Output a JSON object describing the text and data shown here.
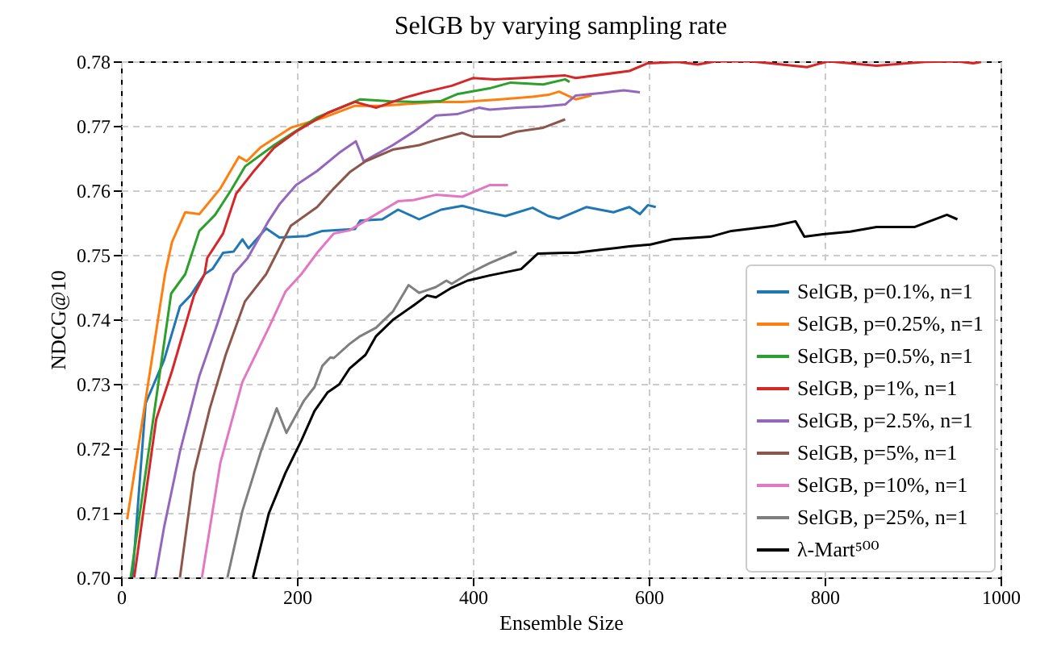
{
  "chart_data": {
    "type": "line",
    "title": "SelGB by varying sampling rate",
    "xlabel": "Ensemble Size",
    "ylabel": "NDCG@10",
    "xlim": [
      0,
      1000
    ],
    "ylim": [
      0.7,
      0.78
    ],
    "xticks": [
      0,
      200,
      400,
      600,
      800,
      1000
    ],
    "yticks": [
      {
        "value": 0.7,
        "label": "0.70"
      },
      {
        "value": 0.71,
        "label": "0.71"
      },
      {
        "value": 0.72,
        "label": "0.72"
      },
      {
        "value": 0.73,
        "label": "0.73"
      },
      {
        "value": 0.74,
        "label": "0.74"
      },
      {
        "value": 0.75,
        "label": "0.75"
      },
      {
        "value": 0.76,
        "label": "0.76"
      },
      {
        "value": 0.77,
        "label": "0.77"
      },
      {
        "value": 0.78,
        "label": "0.78"
      }
    ],
    "grid": true,
    "legend": "bottom right",
    "series": [
      {
        "name": "SelGB, p=0.1%, n=1",
        "color": "#1f77b4",
        "x": [
          13,
          28,
          49,
          67,
          79,
          95,
          104,
          116,
          128,
          138,
          145,
          165,
          180,
          211,
          229,
          266,
          272,
          297,
          315,
          339,
          364,
          388,
          413,
          437,
          468,
          486,
          498,
          529,
          560,
          578,
          590,
          599,
          608
        ],
        "values": [
          0.7,
          0.727,
          0.7337,
          0.742,
          0.7437,
          0.747,
          0.7478,
          0.7503,
          0.7505,
          0.7524,
          0.751,
          0.7541,
          0.7527,
          0.7529,
          0.7537,
          0.754,
          0.7553,
          0.7555,
          0.757,
          0.7555,
          0.757,
          0.7576,
          0.7567,
          0.756,
          0.7573,
          0.756,
          0.7556,
          0.7574,
          0.7566,
          0.7574,
          0.7563,
          0.7577,
          0.7574
        ]
      },
      {
        "name": "SelGB, p=0.25%, n=1",
        "color": "#ff7f0e",
        "x": [
          7,
          50,
          58,
          73,
          89,
          113,
          134,
          143,
          159,
          193,
          229,
          266,
          297,
          358,
          388,
          431,
          468,
          486,
          498,
          517,
          535
        ],
        "values": [
          0.709,
          0.747,
          0.752,
          0.7566,
          0.7563,
          0.7603,
          0.7652,
          0.7645,
          0.7667,
          0.7697,
          0.7712,
          0.7731,
          0.7731,
          0.7737,
          0.7737,
          0.7741,
          0.7745,
          0.7748,
          0.7753,
          0.7741,
          0.7747
        ]
      },
      {
        "name": "SelGB, p=0.5%, n=1",
        "color": "#2ca02c",
        "x": [
          11,
          57,
          73,
          89,
          107,
          125,
          141,
          174,
          193,
          223,
          272,
          305,
          333,
          363,
          382,
          419,
          443,
          480,
          505,
          510
        ],
        "values": [
          0.7,
          0.744,
          0.747,
          0.7537,
          0.7562,
          0.76,
          0.7637,
          0.767,
          0.7687,
          0.7713,
          0.7741,
          0.7738,
          0.7737,
          0.7738,
          0.7749,
          0.7758,
          0.7767,
          0.7764,
          0.7772,
          0.7768
        ]
      },
      {
        "name": "SelGB, p=1%, n=1",
        "color": "#d62728",
        "x": [
          15,
          40,
          58,
          83,
          95,
          98,
          116,
          131,
          150,
          174,
          199,
          235,
          266,
          290,
          321,
          345,
          376,
          400,
          425,
          455,
          505,
          517,
          578,
          599,
          633,
          656,
          676,
          716,
          780,
          804,
          859,
          914,
          950,
          969,
          978
        ],
        "values": [
          0.7,
          0.7245,
          0.732,
          0.7437,
          0.747,
          0.7495,
          0.7533,
          0.7595,
          0.7628,
          0.7666,
          0.7691,
          0.772,
          0.7737,
          0.7728,
          0.7743,
          0.7752,
          0.7762,
          0.7774,
          0.7772,
          0.7774,
          0.7778,
          0.7774,
          0.7785,
          0.7797,
          0.7799,
          0.7795,
          0.78,
          0.78,
          0.7791,
          0.78,
          0.7793,
          0.7799,
          0.78,
          0.7797,
          0.7799
        ]
      },
      {
        "name": "SelGB, p=2.5%, n=1",
        "color": "#9467bd",
        "x": [
          39,
          49,
          67,
          89,
          110,
          128,
          144,
          168,
          180,
          199,
          223,
          248,
          267,
          276,
          309,
          333,
          358,
          382,
          407,
          419,
          450,
          480,
          505,
          517,
          547,
          572,
          590
        ],
        "values": [
          0.7,
          0.7078,
          0.7195,
          0.7312,
          0.7395,
          0.747,
          0.7495,
          0.7553,
          0.7578,
          0.7608,
          0.763,
          0.7658,
          0.7676,
          0.7645,
          0.767,
          0.7691,
          0.7716,
          0.7718,
          0.7728,
          0.7725,
          0.7728,
          0.773,
          0.7733,
          0.7747,
          0.7751,
          0.7755,
          0.7752
        ]
      },
      {
        "name": "SelGB, p=5%, n=1",
        "color": "#8c564b",
        "x": [
          67,
          83,
          101,
          119,
          141,
          165,
          193,
          223,
          242,
          260,
          278,
          309,
          339,
          358,
          388,
          400,
          431,
          450,
          480,
          505
        ],
        "values": [
          0.7,
          0.7162,
          0.7262,
          0.7345,
          0.7428,
          0.747,
          0.7545,
          0.7574,
          0.7603,
          0.7628,
          0.7645,
          0.7663,
          0.767,
          0.7678,
          0.7689,
          0.7683,
          0.7683,
          0.7691,
          0.7697,
          0.771
        ]
      },
      {
        "name": "SelGB, p=10%, n=1",
        "color": "#e377c2",
        "x": [
          92,
          113,
          138,
          168,
          187,
          205,
          223,
          242,
          260,
          284,
          315,
          333,
          358,
          388,
          419,
          440
        ],
        "values": [
          0.7,
          0.7178,
          0.7303,
          0.7387,
          0.7443,
          0.747,
          0.7503,
          0.7533,
          0.7538,
          0.7558,
          0.7583,
          0.7585,
          0.7593,
          0.759,
          0.7608,
          0.7608
        ]
      },
      {
        "name": "SelGB, p=25%, n=1",
        "color": "#7f7f7f",
        "x": [
          121,
          138,
          159,
          177,
          188,
          208,
          220,
          229,
          238,
          242,
          260,
          272,
          290,
          309,
          327,
          339,
          358,
          370,
          376,
          394,
          419,
          450
        ],
        "values": [
          0.7,
          0.7103,
          0.7195,
          0.7262,
          0.7224,
          0.7274,
          0.7295,
          0.7328,
          0.7341,
          0.734,
          0.7362,
          0.7374,
          0.7387,
          0.7412,
          0.7453,
          0.7441,
          0.745,
          0.746,
          0.7455,
          0.747,
          0.7487,
          0.7505
        ]
      },
      {
        "name": "λ-Mart⁵⁰⁰",
        "color": "#000000",
        "x": [
          150,
          168,
          187,
          205,
          220,
          235,
          248,
          260,
          278,
          290,
          309,
          333,
          348,
          358,
          376,
          394,
          419,
          455,
          474,
          505,
          517,
          547,
          578,
          602,
          627,
          670,
          694,
          743,
          767,
          777,
          798,
          829,
          859,
          902,
          939,
          951
        ],
        "values": [
          0.7,
          0.7099,
          0.7162,
          0.7212,
          0.7258,
          0.7287,
          0.7299,
          0.7324,
          0.7345,
          0.7374,
          0.7399,
          0.7422,
          0.7437,
          0.7434,
          0.7449,
          0.746,
          0.7468,
          0.7478,
          0.7502,
          0.7503,
          0.7503,
          0.7508,
          0.7513,
          0.7516,
          0.7524,
          0.7528,
          0.7537,
          0.7545,
          0.7552,
          0.7528,
          0.7532,
          0.7536,
          0.7543,
          0.7543,
          0.7562,
          0.7555
        ]
      }
    ]
  }
}
